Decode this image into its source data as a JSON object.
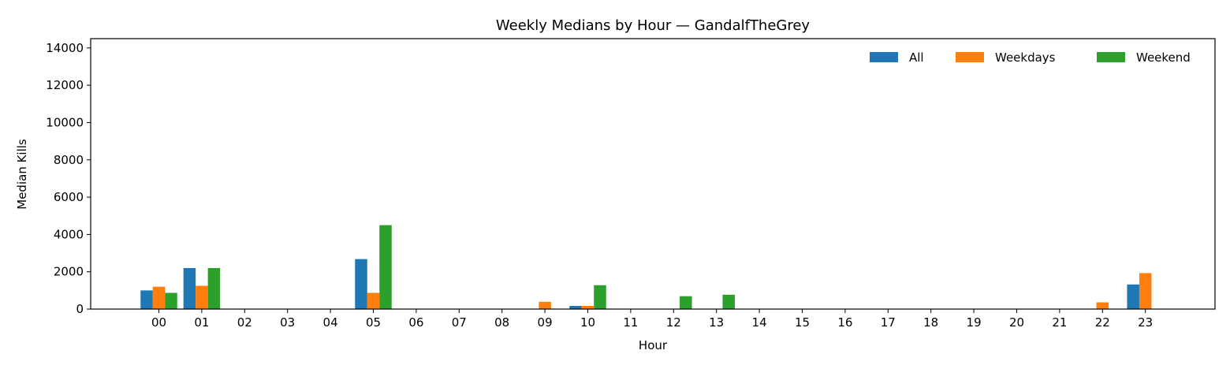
{
  "chart_data": {
    "type": "bar",
    "title": "Weekly Medians by Hour — GandalfTheGrey",
    "xlabel": "Hour",
    "ylabel": "Median Kills",
    "ylim": [
      0,
      14500
    ],
    "yticks": [
      0,
      2000,
      4000,
      6000,
      8000,
      10000,
      12000,
      14000
    ],
    "legend_position": "top-right",
    "grid": false,
    "categories": [
      "00",
      "01",
      "02",
      "03",
      "04",
      "05",
      "06",
      "07",
      "08",
      "09",
      "10",
      "11",
      "12",
      "13",
      "14",
      "15",
      "16",
      "17",
      "18",
      "19",
      "20",
      "21",
      "22",
      "23"
    ],
    "series": [
      {
        "name": "All",
        "color": "#1f77b4",
        "values": [
          1000,
          2200,
          0,
          0,
          0,
          2680,
          0,
          0,
          0,
          0,
          170,
          0,
          0,
          0,
          0,
          0,
          0,
          0,
          0,
          0,
          0,
          0,
          0,
          1320
        ]
      },
      {
        "name": "Weekdays",
        "color": "#ff7f0e",
        "values": [
          1200,
          1250,
          0,
          0,
          0,
          870,
          0,
          0,
          0,
          390,
          170,
          0,
          0,
          0,
          0,
          0,
          0,
          0,
          0,
          0,
          0,
          0,
          360,
          1930
        ]
      },
      {
        "name": "Weekend",
        "color": "#2ca02c",
        "values": [
          870,
          2200,
          0,
          0,
          0,
          4500,
          0,
          0,
          0,
          0,
          1280,
          0,
          690,
          770,
          0,
          0,
          0,
          0,
          0,
          0,
          0,
          0,
          0,
          0
        ]
      }
    ]
  }
}
